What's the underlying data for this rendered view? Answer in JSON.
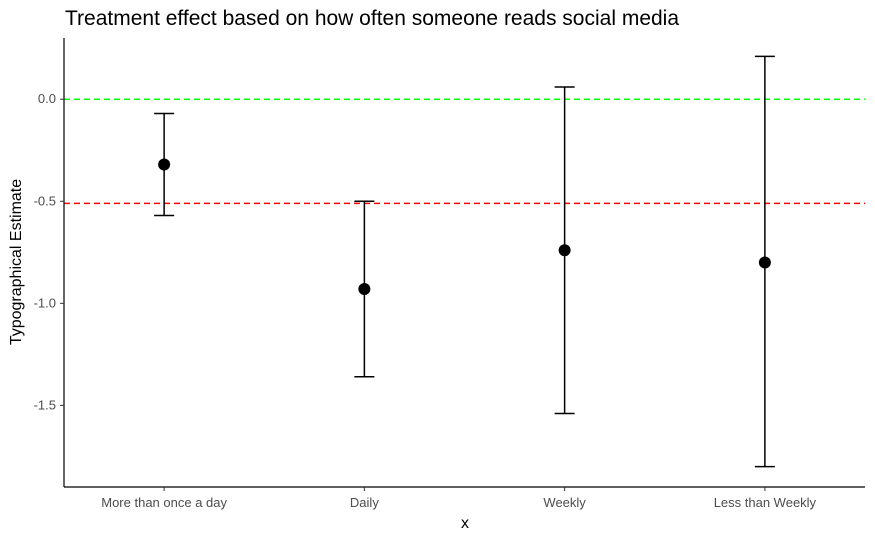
{
  "chart_data": {
    "type": "errorbar",
    "title": "Treatment effect based on how often someone reads social media",
    "xlabel": "x",
    "ylabel": "Typographical Estimate",
    "categories": [
      "More than once a day",
      "Daily",
      "Weekly",
      "Less than Weekly"
    ],
    "estimates": [
      -0.32,
      -0.93,
      -0.74,
      -0.8
    ],
    "ci_lower": [
      -0.57,
      -1.36,
      -1.54,
      -1.8
    ],
    "ci_upper": [
      -0.07,
      -0.5,
      0.06,
      0.21
    ],
    "ylim": [
      -1.9,
      0.3
    ],
    "yticks": [
      0.0,
      -0.5,
      -1.0,
      -1.5
    ],
    "ytick_labels": [
      "0.0",
      "-0.5",
      "-1.0",
      "-1.5"
    ],
    "reference_lines": [
      {
        "y": 0.0,
        "color": "#00ff00",
        "style": "dashed"
      },
      {
        "y": -0.51,
        "color": "#ff0000",
        "style": "dashed"
      }
    ],
    "point_color": "#000000",
    "grid": false
  }
}
